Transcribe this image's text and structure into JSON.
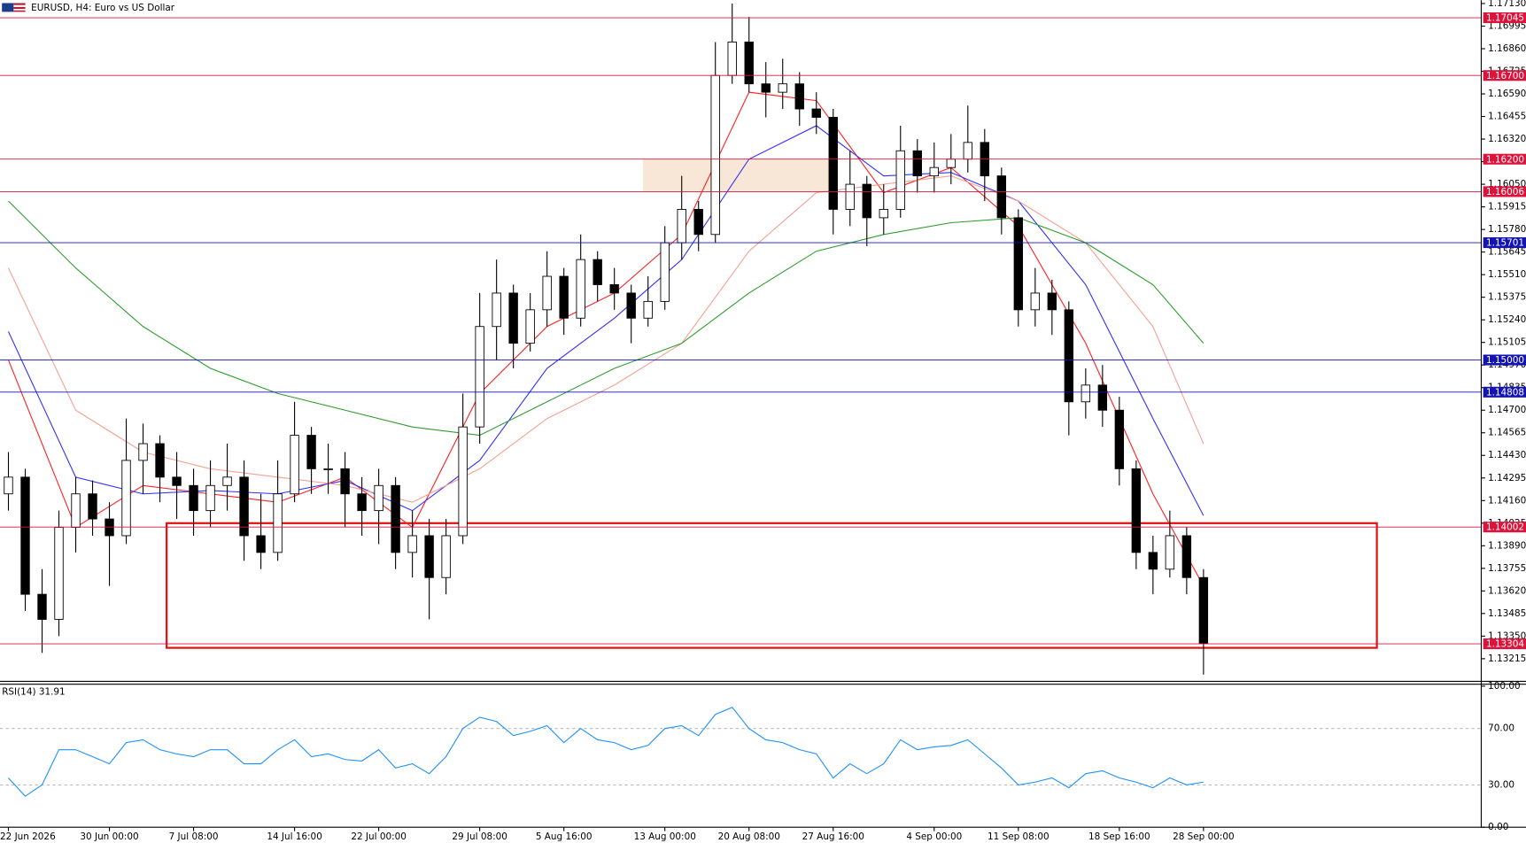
{
  "chart_data": [
    {
      "type": "candlestick",
      "title": "EURUSD, H4:  Euro vs US Dollar",
      "ohlc": [
        [
          1.142,
          1.1445,
          1.141,
          1.143
        ],
        [
          1.143,
          1.1435,
          1.135,
          1.136
        ],
        [
          1.136,
          1.1375,
          1.1325,
          1.1345
        ],
        [
          1.1345,
          1.141,
          1.1335,
          1.14
        ],
        [
          1.14,
          1.143,
          1.1385,
          1.142
        ],
        [
          1.142,
          1.1428,
          1.1395,
          1.1405
        ],
        [
          1.1405,
          1.1415,
          1.1365,
          1.1395
        ],
        [
          1.1395,
          1.1465,
          1.139,
          1.144
        ],
        [
          1.144,
          1.1462,
          1.142,
          1.145
        ],
        [
          1.145,
          1.1455,
          1.1415,
          1.143
        ],
        [
          1.143,
          1.1445,
          1.1405,
          1.1425
        ],
        [
          1.1425,
          1.1435,
          1.1395,
          1.141
        ],
        [
          1.141,
          1.144,
          1.14,
          1.1425
        ],
        [
          1.1425,
          1.145,
          1.141,
          1.143
        ],
        [
          1.143,
          1.144,
          1.138,
          1.1395
        ],
        [
          1.1395,
          1.142,
          1.1375,
          1.1385
        ],
        [
          1.1385,
          1.144,
          1.138,
          1.142
        ],
        [
          1.142,
          1.1475,
          1.1415,
          1.1455
        ],
        [
          1.1455,
          1.146,
          1.142,
          1.1435
        ],
        [
          1.1435,
          1.145,
          1.142,
          1.1435
        ],
        [
          1.1435,
          1.1445,
          1.14,
          1.142
        ],
        [
          1.142,
          1.143,
          1.1395,
          1.141
        ],
        [
          1.141,
          1.1435,
          1.139,
          1.1425
        ],
        [
          1.1425,
          1.143,
          1.1375,
          1.1385
        ],
        [
          1.1385,
          1.141,
          1.137,
          1.1395
        ],
        [
          1.1395,
          1.1405,
          1.1345,
          1.137
        ],
        [
          1.137,
          1.1405,
          1.136,
          1.1395
        ],
        [
          1.1395,
          1.148,
          1.139,
          1.146
        ],
        [
          1.146,
          1.154,
          1.145,
          1.152
        ],
        [
          1.152,
          1.156,
          1.15,
          1.154
        ],
        [
          1.154,
          1.1545,
          1.1495,
          1.151
        ],
        [
          1.151,
          1.154,
          1.1505,
          1.153
        ],
        [
          1.153,
          1.1565,
          1.152,
          1.155
        ],
        [
          1.155,
          1.1555,
          1.1515,
          1.1525
        ],
        [
          1.1525,
          1.1575,
          1.152,
          1.156
        ],
        [
          1.156,
          1.1565,
          1.1535,
          1.1545
        ],
        [
          1.1545,
          1.1555,
          1.153,
          1.154
        ],
        [
          1.154,
          1.1545,
          1.151,
          1.1525
        ],
        [
          1.1525,
          1.155,
          1.152,
          1.1535
        ],
        [
          1.1535,
          1.158,
          1.153,
          1.157
        ],
        [
          1.157,
          1.161,
          1.156,
          1.159
        ],
        [
          1.159,
          1.1595,
          1.1565,
          1.1575
        ],
        [
          1.1575,
          1.169,
          1.157,
          1.167
        ],
        [
          1.167,
          1.1713,
          1.1665,
          1.169
        ],
        [
          1.169,
          1.1705,
          1.166,
          1.1665
        ],
        [
          1.1665,
          1.1678,
          1.1645,
          1.166
        ],
        [
          1.166,
          1.168,
          1.165,
          1.1665
        ],
        [
          1.1665,
          1.1672,
          1.164,
          1.165
        ],
        [
          1.165,
          1.166,
          1.1635,
          1.1645
        ],
        [
          1.1645,
          1.165,
          1.1575,
          1.159
        ],
        [
          1.159,
          1.1625,
          1.158,
          1.1605
        ],
        [
          1.1605,
          1.161,
          1.1568,
          1.1585
        ],
        [
          1.1585,
          1.1605,
          1.1575,
          1.159
        ],
        [
          1.159,
          1.164,
          1.1585,
          1.1625
        ],
        [
          1.1625,
          1.1632,
          1.16,
          1.161
        ],
        [
          1.161,
          1.163,
          1.16,
          1.1615
        ],
        [
          1.1615,
          1.1635,
          1.1605,
          1.162
        ],
        [
          1.162,
          1.1652,
          1.1612,
          1.163
        ],
        [
          1.163,
          1.1638,
          1.1595,
          1.161
        ],
        [
          1.161,
          1.1615,
          1.1575,
          1.1585
        ],
        [
          1.1585,
          1.159,
          1.152,
          1.153
        ],
        [
          1.153,
          1.1555,
          1.152,
          1.154
        ],
        [
          1.154,
          1.1548,
          1.1515,
          1.153
        ],
        [
          1.153,
          1.1535,
          1.1455,
          1.1475
        ],
        [
          1.1475,
          1.1495,
          1.1465,
          1.1485
        ],
        [
          1.1485,
          1.1497,
          1.146,
          1.147
        ],
        [
          1.147,
          1.1478,
          1.1425,
          1.1435
        ],
        [
          1.1435,
          1.144,
          1.1375,
          1.1385
        ],
        [
          1.1385,
          1.1395,
          1.136,
          1.1375
        ],
        [
          1.1375,
          1.141,
          1.137,
          1.1395
        ],
        [
          1.1395,
          1.14,
          1.136,
          1.137
        ],
        [
          1.137,
          1.1375,
          1.1312,
          1.13304
        ]
      ],
      "up_color": "#ffffff",
      "down_color": "#000000",
      "wick_color": "#000000",
      "series": [
        {
          "color": "#ff2020",
          "x": [
            0,
            4,
            8,
            12,
            16,
            20,
            24,
            28,
            32,
            36,
            40,
            44,
            48,
            52,
            56,
            60,
            64,
            68,
            71
          ],
          "values": [
            1.15,
            1.14,
            1.1425,
            1.142,
            1.1415,
            1.143,
            1.14,
            1.148,
            1.152,
            1.154,
            1.1575,
            1.166,
            1.1655,
            1.16,
            1.1615,
            1.158,
            1.151,
            1.142,
            1.1365
          ]
        },
        {
          "color": "#3030ff",
          "x": [
            0,
            4,
            8,
            12,
            16,
            20,
            24,
            28,
            32,
            36,
            40,
            44,
            48,
            52,
            56,
            60,
            64,
            68,
            71
          ],
          "values": [
            1.1517,
            1.143,
            1.142,
            1.1422,
            1.142,
            1.1428,
            1.141,
            1.144,
            1.1495,
            1.1525,
            1.156,
            1.162,
            1.164,
            1.161,
            1.1612,
            1.1595,
            1.1545,
            1.1465,
            1.1407
          ]
        },
        {
          "color": "#f4a090",
          "x": [
            0,
            4,
            8,
            12,
            16,
            20,
            24,
            28,
            32,
            36,
            40,
            44,
            48,
            52,
            56,
            60,
            64,
            68,
            71
          ],
          "values": [
            1.1555,
            1.147,
            1.1445,
            1.1435,
            1.143,
            1.1425,
            1.1415,
            1.1435,
            1.1465,
            1.1485,
            1.151,
            1.1565,
            1.16,
            1.1605,
            1.161,
            1.1595,
            1.157,
            1.152,
            1.145
          ]
        },
        {
          "color": "#2e9e2e",
          "x": [
            0,
            4,
            8,
            12,
            16,
            20,
            24,
            28,
            32,
            36,
            40,
            44,
            48,
            52,
            56,
            60,
            64,
            68,
            71
          ],
          "values": [
            1.1595,
            1.1555,
            1.152,
            1.1495,
            1.148,
            1.147,
            1.146,
            1.1455,
            1.1475,
            1.1495,
            1.151,
            1.154,
            1.1565,
            1.1575,
            1.1582,
            1.1585,
            1.157,
            1.1545,
            1.151
          ]
        }
      ],
      "zones": [
        {
          "x": [
            37.7,
            49.2
          ],
          "y": [
            1.16006,
            1.162
          ],
          "fill": "#f8e6d6",
          "stroke": "none"
        },
        {
          "x": [
            9.4,
            81.3
          ],
          "y": [
            1.1328,
            1.14025
          ],
          "fill": "none",
          "stroke": "#e01010"
        }
      ],
      "levels": [
        {
          "value": 1.17045,
          "color": "#dc143c"
        },
        {
          "value": 1.167,
          "label": "1.16700",
          "color": "#dc143c"
        },
        {
          "value": 1.162,
          "label": "1.16200",
          "color": "#dc143c"
        },
        {
          "value": 1.16006,
          "color": "#dc143c"
        },
        {
          "value": 1.15701,
          "color": "#1414b4"
        },
        {
          "value": 1.15,
          "label": "1.15000",
          "color": "#1414b4"
        },
        {
          "value": 1.14808,
          "color": "#1414b4"
        },
        {
          "value": 1.14002,
          "color": "#dc143c"
        },
        {
          "value": 1.13304,
          "color": "#dc143c"
        }
      ],
      "xlim": [
        -0.5,
        87.5
      ],
      "xticks": [
        {
          "value": 0,
          "label": "22 Jun 2026"
        },
        {
          "value": 6,
          "label": "30 Jun 00:00"
        },
        {
          "value": 11,
          "label": "7 Jul 08:00"
        },
        {
          "value": 17,
          "label": "14 Jul 16:00"
        },
        {
          "value": 22,
          "label": "22 Jul 00:00"
        },
        {
          "value": 28,
          "label": "29 Jul 08:00"
        },
        {
          "value": 33,
          "label": "5 Aug 16:00"
        },
        {
          "value": 39,
          "label": "13 Aug 00:00"
        },
        {
          "value": 44,
          "label": "20 Aug 08:00"
        },
        {
          "value": 49,
          "label": "27 Aug 16:00"
        },
        {
          "value": 55,
          "label": "4 Sep 00:00"
        },
        {
          "value": 60,
          "label": "11 Sep 08:00"
        },
        {
          "value": 66,
          "label": "18 Sep 16:00"
        },
        {
          "value": 71,
          "label": "28 Sep 00:00"
        }
      ],
      "ylim": [
        1.1308,
        1.1715
      ],
      "yticks": [
        {
          "value": 1.1713,
          "label": "1.17130"
        },
        1.16995,
        {
          "value": 1.1686,
          "label": "1.16860"
        },
        1.16725,
        {
          "value": 1.1659,
          "label": "1.16590"
        },
        1.16455,
        {
          "value": 1.1632,
          "label": "1.16320"
        },
        1.16185,
        {
          "value": 1.1605,
          "label": "1.16050"
        },
        1.15915,
        {
          "value": 1.1578,
          "label": "1.15780"
        },
        1.15645,
        {
          "value": 1.1551,
          "label": "1.15510"
        },
        1.15375,
        {
          "value": 1.1524,
          "label": "1.15240"
        },
        1.15105,
        {
          "value": 1.1497,
          "label": "1.14970"
        },
        1.14835,
        {
          "value": 1.147,
          "label": "1.14700"
        },
        1.14565,
        {
          "value": 1.1443,
          "label": "1.14430"
        },
        1.14295,
        {
          "value": 1.1416,
          "label": "1.14160"
        },
        1.14025,
        {
          "value": 1.1389,
          "label": "1.13890"
        },
        1.13755,
        {
          "value": 1.1362,
          "label": "1.13620"
        },
        1.13485,
        {
          "value": 1.1335,
          "label": "1.13350"
        },
        1.13215
      ]
    },
    {
      "type": "line",
      "title": "RSI(14) 31.91",
      "color": "#1e90ff",
      "values": [
        35,
        22,
        30,
        55,
        55,
        50,
        45,
        60,
        62,
        55,
        52,
        50,
        55,
        55,
        45,
        45,
        55,
        62,
        50,
        52,
        48,
        47,
        55,
        42,
        45,
        38,
        50,
        70,
        78,
        75,
        65,
        68,
        72,
        60,
        70,
        62,
        60,
        55,
        58,
        70,
        72,
        65,
        80,
        85,
        70,
        62,
        60,
        55,
        52,
        35,
        45,
        38,
        45,
        62,
        55,
        57,
        58,
        62,
        52,
        42,
        30,
        32,
        35,
        28,
        38,
        40,
        35,
        32,
        28,
        35,
        30,
        32
      ],
      "xlim": [
        -0.5,
        87.5
      ],
      "ylim": [
        0,
        100
      ],
      "yticks": [
        {
          "value": 100,
          "label": "100.00"
        },
        {
          "value": 70,
          "label": "70.00"
        },
        {
          "value": 30,
          "label": "30.00"
        },
        {
          "value": 0,
          "label": "0.00"
        }
      ]
    }
  ]
}
